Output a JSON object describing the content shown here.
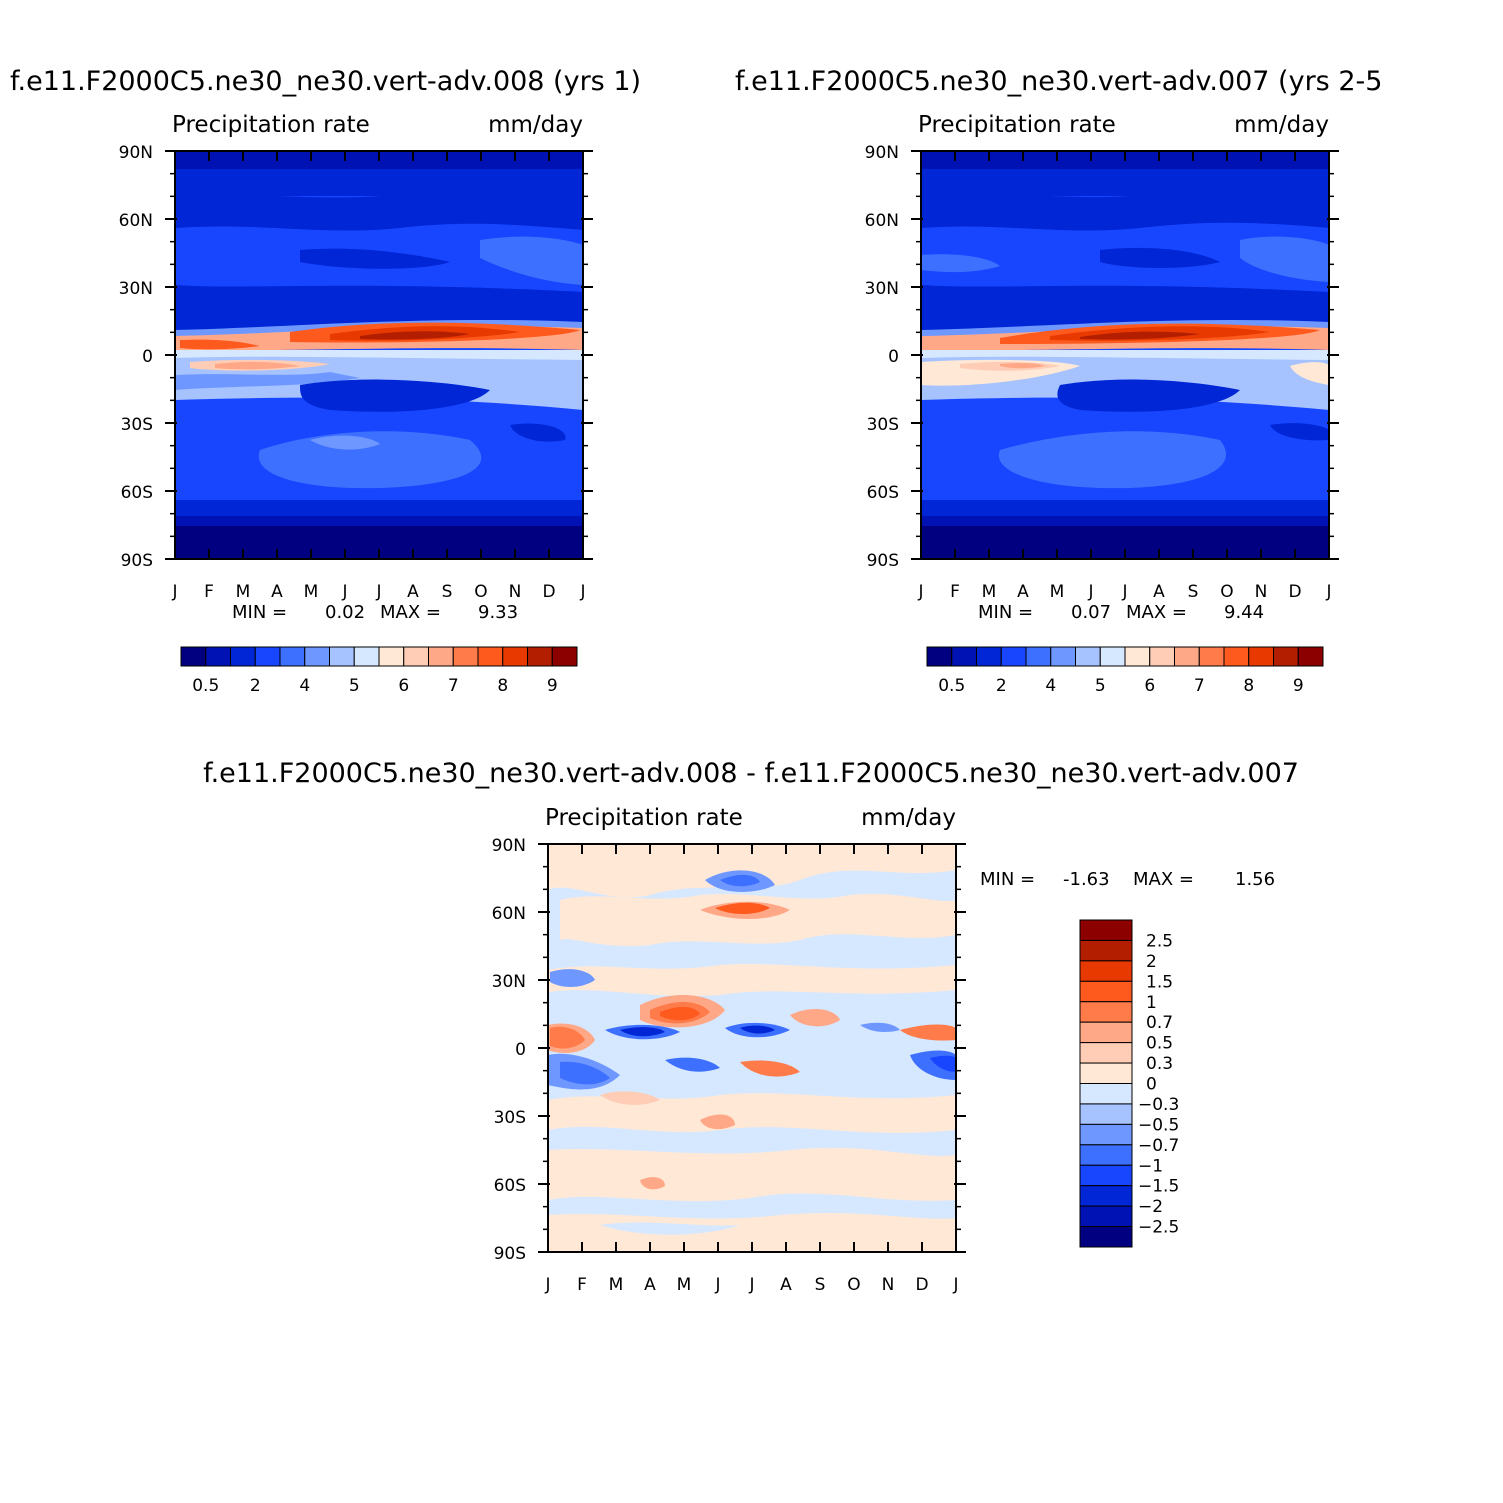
{
  "chart_data": [
    {
      "type": "heatmap",
      "title": "f.e11.F2000C5.ne30_ne30.vert-adv.008 (yrs 1)",
      "left_label": "Precipitation rate",
      "right_label": "mm/day",
      "x_ticks": [
        "J",
        "F",
        "M",
        "A",
        "M",
        "J",
        "J",
        "A",
        "S",
        "O",
        "N",
        "D",
        "J"
      ],
      "y_ticks": [
        "90N",
        "60N",
        "30N",
        "0",
        "30S",
        "60S",
        "90S"
      ],
      "ylim": [
        -90,
        90
      ],
      "min_label": "MIN =",
      "min_value": "0.02",
      "max_label": "MAX =",
      "max_value": "9.33",
      "min": 0.02,
      "max": 9.33,
      "colorbar_labels": [
        "0.5",
        "2",
        "4",
        "5",
        "6",
        "7",
        "8",
        "9"
      ],
      "colors": [
        "#000080",
        "#0012b4",
        "#0026d6",
        "#1846ff",
        "#3e70ff",
        "#6e98ff",
        "#a6c3ff",
        "#d6e8ff",
        "#ffe8d6",
        "#ffcdb6",
        "#ffa888",
        "#ff7c4a",
        "#ff5a1e",
        "#e83a00",
        "#b41e00",
        "#8c0000"
      ]
    },
    {
      "type": "heatmap",
      "title": "f.e11.F2000C5.ne30_ne30.vert-adv.007 (yrs 2-5",
      "left_label": "Precipitation rate",
      "right_label": "mm/day",
      "x_ticks": [
        "J",
        "F",
        "M",
        "A",
        "M",
        "J",
        "J",
        "A",
        "S",
        "O",
        "N",
        "D",
        "J"
      ],
      "y_ticks": [
        "90N",
        "60N",
        "30N",
        "0",
        "30S",
        "60S",
        "90S"
      ],
      "ylim": [
        -90,
        90
      ],
      "min_label": "MIN =",
      "min_value": "0.07",
      "max_label": "MAX =",
      "max_value": "9.44",
      "min": 0.07,
      "max": 9.44,
      "colorbar_labels": [
        "0.5",
        "2",
        "4",
        "5",
        "6",
        "7",
        "8",
        "9"
      ],
      "colors": [
        "#000080",
        "#0012b4",
        "#0026d6",
        "#1846ff",
        "#3e70ff",
        "#6e98ff",
        "#a6c3ff",
        "#d6e8ff",
        "#ffe8d6",
        "#ffcdb6",
        "#ffa888",
        "#ff7c4a",
        "#ff5a1e",
        "#e83a00",
        "#b41e00",
        "#8c0000"
      ]
    },
    {
      "type": "heatmap",
      "title": "f.e11.F2000C5.ne30_ne30.vert-adv.008 - f.e11.F2000C5.ne30_ne30.vert-adv.007",
      "left_label": "Precipitation rate",
      "right_label": "mm/day",
      "x_ticks": [
        "J",
        "F",
        "M",
        "A",
        "M",
        "J",
        "J",
        "A",
        "S",
        "O",
        "N",
        "D",
        "J"
      ],
      "y_ticks": [
        "90N",
        "60N",
        "30N",
        "0",
        "30S",
        "60S",
        "90S"
      ],
      "ylim": [
        -90,
        90
      ],
      "min_label": "MIN =",
      "min_value": "-1.63",
      "max_label": "MAX =",
      "max_value": "1.56",
      "min": -1.63,
      "max": 1.56,
      "colorbar_labels": [
        "2.5",
        "2",
        "1.5",
        "1",
        "0.7",
        "0.5",
        "0.3",
        "0",
        "-0.3",
        "-0.5",
        "-0.7",
        "-1",
        "-1.5",
        "-2",
        "-2.5"
      ],
      "colors": [
        "#8c0000",
        "#b41e00",
        "#e83a00",
        "#ff5a1e",
        "#ff7c4a",
        "#ffa888",
        "#ffcdb6",
        "#ffe8d6",
        "#d6e8ff",
        "#a6c3ff",
        "#6e98ff",
        "#3e70ff",
        "#1846ff",
        "#0026d6",
        "#0012b4",
        "#000080"
      ]
    }
  ]
}
